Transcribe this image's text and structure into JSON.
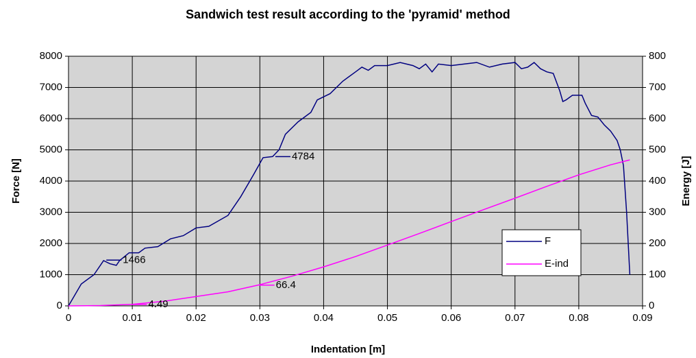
{
  "chart_data": {
    "type": "line",
    "title": "Sandwich test result according to the 'pyramid' method",
    "x_label": "Indentation [m]",
    "y_label": "Force [N]",
    "y2_label": "Energy [J]",
    "xlim": [
      0,
      0.09
    ],
    "xticks": [
      0,
      0.01,
      0.02,
      0.03,
      0.04,
      0.05,
      0.06,
      0.07,
      0.08,
      0.09
    ],
    "ylim": [
      0,
      8000
    ],
    "yticks": [
      0,
      1000,
      2000,
      3000,
      4000,
      5000,
      6000,
      7000,
      8000
    ],
    "y2lim": [
      0,
      800
    ],
    "y2ticks": [
      0,
      100,
      200,
      300,
      400,
      500,
      600,
      700,
      800
    ],
    "grid": true,
    "plot_background": "#d4d4d4",
    "legend": "lower right",
    "series": [
      {
        "name": "F",
        "color": "#000080",
        "x": [
          0,
          0.002,
          0.004,
          0.0055,
          0.0065,
          0.0075,
          0.008,
          0.0095,
          0.011,
          0.012,
          0.014,
          0.016,
          0.018,
          0.02,
          0.022,
          0.025,
          0.027,
          0.029,
          0.0305,
          0.032,
          0.033,
          0.034,
          0.036,
          0.038,
          0.039,
          0.041,
          0.043,
          0.045,
          0.046,
          0.047,
          0.048,
          0.05,
          0.052,
          0.054,
          0.055,
          0.056,
          0.057,
          0.058,
          0.06,
          0.062,
          0.064,
          0.066,
          0.068,
          0.07,
          0.071,
          0.072,
          0.073,
          0.074,
          0.075,
          0.076,
          0.077,
          0.0775,
          0.078,
          0.079,
          0.0805,
          0.081,
          0.082,
          0.083,
          0.084,
          0.085,
          0.086,
          0.0865,
          0.087,
          0.0875,
          0.088
        ],
        "values": [
          0,
          700,
          1000,
          1450,
          1350,
          1300,
          1450,
          1700,
          1700,
          1850,
          1900,
          2150,
          2250,
          2500,
          2550,
          2900,
          3500,
          4200,
          4750,
          4784,
          5000,
          5500,
          5900,
          6200,
          6600,
          6800,
          7200,
          7500,
          7650,
          7550,
          7700,
          7700,
          7800,
          7700,
          7600,
          7750,
          7500,
          7750,
          7700,
          7750,
          7800,
          7650,
          7750,
          7800,
          7600,
          7650,
          7800,
          7600,
          7500,
          7450,
          6900,
          6550,
          6600,
          6750,
          6750,
          6500,
          6100,
          6050,
          5800,
          5600,
          5300,
          5000,
          4500,
          3000,
          1000
        ]
      },
      {
        "name": "E-ind",
        "color": "#ff00ff",
        "axis": "y2",
        "x": [
          0,
          0.005,
          0.01,
          0.015,
          0.02,
          0.025,
          0.03,
          0.035,
          0.04,
          0.045,
          0.05,
          0.055,
          0.06,
          0.065,
          0.07,
          0.075,
          0.08,
          0.085,
          0.088
        ],
        "values": [
          0,
          1,
          5,
          15,
          30,
          45,
          68,
          95,
          125,
          158,
          195,
          232,
          270,
          308,
          345,
          383,
          420,
          452,
          468
        ]
      }
    ],
    "annotations": [
      {
        "text": "4784",
        "x": 0.032,
        "value": 4784,
        "series": 0
      },
      {
        "text": "1466",
        "x": 0.0055,
        "value": 1466,
        "series": 0
      },
      {
        "text": "66.4",
        "x": 0.0295,
        "value": 66.4,
        "series": 1
      },
      {
        "text": "4.49",
        "x": 0.0095,
        "value": 4.49,
        "series": 1
      }
    ]
  }
}
